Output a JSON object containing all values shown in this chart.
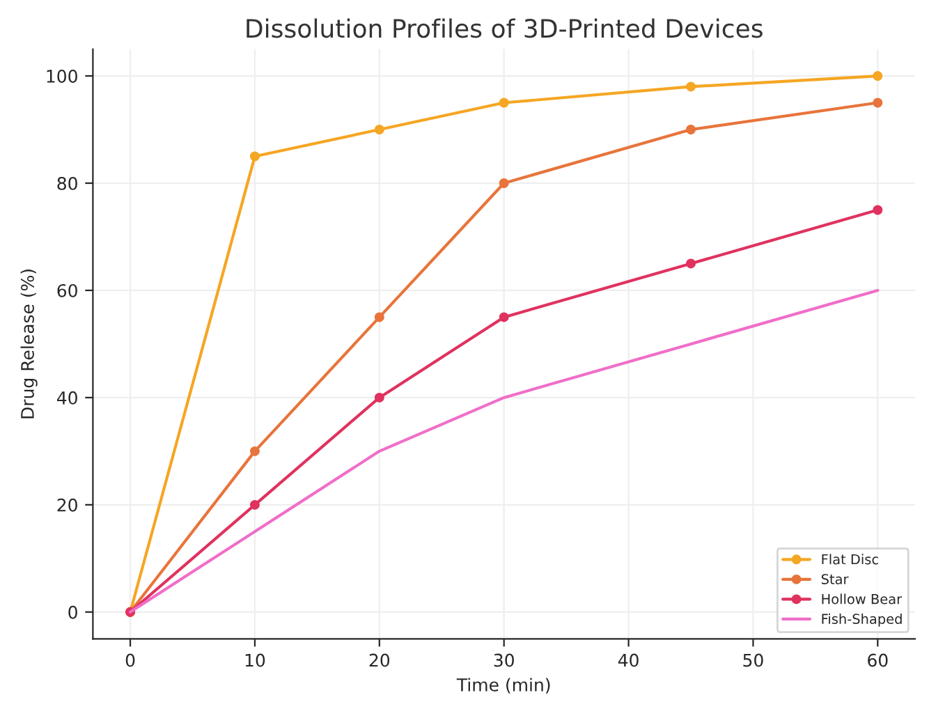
{
  "chart_data": {
    "type": "line",
    "title": "Dissolution Profiles of 3D-Printed Devices",
    "xlabel": "Time (min)",
    "ylabel": "Drug Release (%)",
    "x": [
      0,
      10,
      20,
      30,
      45,
      60
    ],
    "series": [
      {
        "name": "Flat Disc",
        "color": "#f5a623",
        "marker": "circle",
        "values": [
          0,
          85,
          90,
          95,
          98,
          100
        ]
      },
      {
        "name": "Star",
        "color": "#e8743b",
        "marker": "circle",
        "values": [
          0,
          30,
          55,
          80,
          90,
          95
        ]
      },
      {
        "name": "Hollow Bear",
        "color": "#e0325f",
        "marker": "circle",
        "values": [
          0,
          20,
          40,
          55,
          65,
          75
        ]
      },
      {
        "name": "Fish-Shaped",
        "color": "#f06ec8",
        "marker": "none",
        "values": [
          0,
          15,
          30,
          40,
          50,
          60
        ]
      }
    ],
    "xlim": [
      -3,
      63
    ],
    "xticks": [
      0,
      10,
      20,
      30,
      40,
      50,
      60
    ],
    "ylim": [
      -5,
      105
    ],
    "yticks": [
      0,
      20,
      40,
      60,
      80,
      100
    ],
    "grid": true,
    "legend": "lower right",
    "line_style": "solid"
  }
}
